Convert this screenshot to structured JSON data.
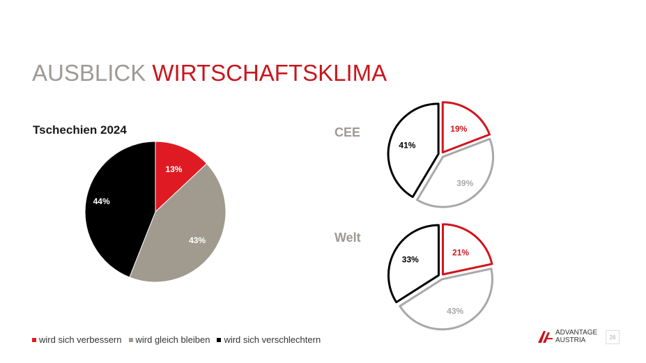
{
  "title": {
    "part1": "AUSBLICK",
    "part2": "WIRTSCHAFTSKLIMA"
  },
  "subtitle": "Tschechien 2024",
  "regions": {
    "cee": "CEE",
    "welt": "Welt"
  },
  "legend": [
    {
      "label": "wird sich verbessern",
      "color": "#e01a22"
    },
    {
      "label": "wird gleich bleiben",
      "color": "#a09a8f"
    },
    {
      "label": "wird sich verschlechtern",
      "color": "#000000"
    }
  ],
  "logo": {
    "line1": "ADVANTAGE",
    "line2": "AUSTRIA"
  },
  "page_number": "26",
  "chart_data": [
    {
      "type": "pie",
      "title": "Tschechien 2024",
      "categories": [
        "wird sich verbessern",
        "wird gleich bleiben",
        "wird sich verschlechtern"
      ],
      "values": [
        13,
        43,
        44
      ],
      "labels": [
        "13%",
        "43%",
        "44%"
      ],
      "colors": [
        "#e01a22",
        "#a09a8f",
        "#000000"
      ],
      "style": "filled"
    },
    {
      "type": "pie",
      "title": "CEE",
      "categories": [
        "wird sich verbessern",
        "wird gleich bleiben",
        "wird sich verschlechtern"
      ],
      "values": [
        19,
        39,
        41
      ],
      "labels": [
        "19%",
        "39%",
        "41%"
      ],
      "colors": [
        "#d0151d",
        "#a8a8a8",
        "#000000"
      ],
      "style": "outline"
    },
    {
      "type": "pie",
      "title": "Welt",
      "categories": [
        "wird sich verbessern",
        "wird gleich bleiben",
        "wird sich verschlechtern"
      ],
      "values": [
        21,
        43,
        33
      ],
      "labels": [
        "21%",
        "43%",
        "33%"
      ],
      "colors": [
        "#d0151d",
        "#a8a8a8",
        "#000000"
      ],
      "style": "outline"
    }
  ]
}
